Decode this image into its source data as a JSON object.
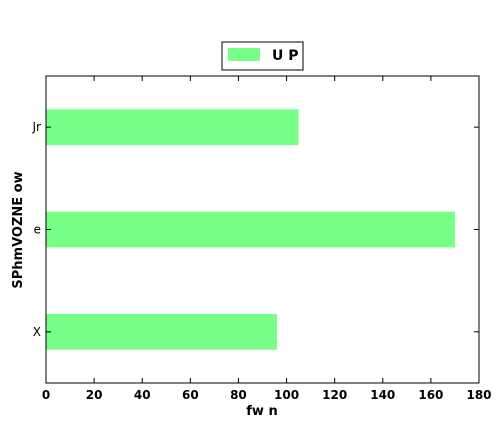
{
  "chart_data": {
    "type": "bar",
    "orientation": "horizontal",
    "categories": [
      "X",
      "e",
      "Jr"
    ],
    "series": [
      {
        "name": "U P",
        "values": [
          96,
          170,
          105
        ],
        "color": "#77ff88"
      }
    ],
    "xlabel": "fw n",
    "ylabel": "SPhmVOZNE ow",
    "xlim": [
      0,
      180
    ],
    "xticks": [
      0,
      20,
      40,
      60,
      80,
      100,
      120,
      140,
      160,
      180
    ],
    "grid": false,
    "legend_position": "top-center"
  }
}
